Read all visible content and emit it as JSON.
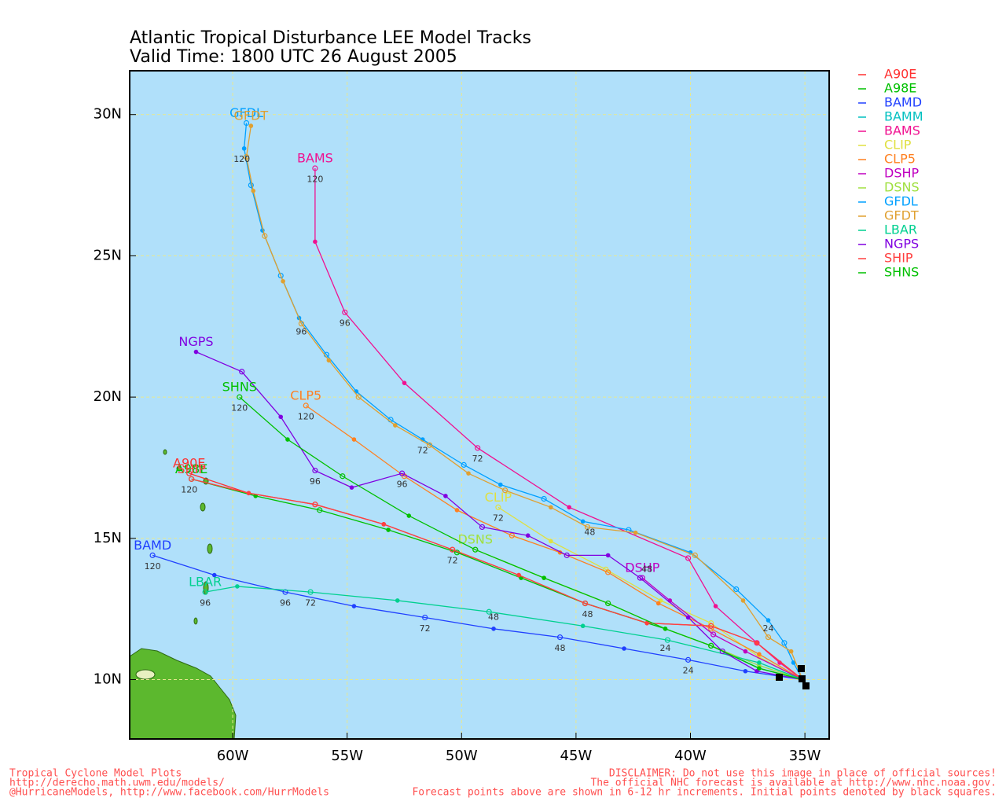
{
  "chart_data": {
    "type": "track",
    "title": "Atlantic Tropical Disturbance LEE Model Tracks",
    "subtitle": "Valid Time: 1800 UTC 26 August 2005",
    "xlim": [
      -64.5,
      -33.94
    ],
    "ylim": [
      7.9,
      31.55
    ],
    "xticks": [
      {
        "value": -60,
        "label": "60W"
      },
      {
        "value": -55,
        "label": "55W"
      },
      {
        "value": -50,
        "label": "50W"
      },
      {
        "value": -45,
        "label": "45W"
      },
      {
        "value": -40,
        "label": "40W"
      },
      {
        "value": -35,
        "label": "35W"
      }
    ],
    "yticks": [
      {
        "value": 10,
        "label": "10N"
      },
      {
        "value": 15,
        "label": "15N"
      },
      {
        "value": 20,
        "label": "20N"
      },
      {
        "value": 25,
        "label": "25N"
      },
      {
        "value": 30,
        "label": "30N"
      }
    ],
    "grid": true,
    "series": [
      {
        "name": "A90E",
        "color": "#ff3030",
        "x": [
          -35.1,
          -37.1,
          -39.1,
          -41.9,
          -44.6,
          -47.5,
          -50.4,
          -53.4,
          -56.4,
          -59.3,
          -61.9
        ],
        "y": [
          10.0,
          11.3,
          11.9,
          12.0,
          12.7,
          13.7,
          14.6,
          15.5,
          16.2,
          16.6,
          17.3
        ]
      },
      {
        "name": "A98E",
        "color": "#00c000",
        "x": [
          -35.1,
          -37.0,
          -39.1,
          -41.1,
          -44.6,
          -47.4,
          -50.2,
          -53.2,
          -56.2,
          -59.0,
          -61.8
        ],
        "y": [
          10.0,
          10.4,
          11.2,
          11.8,
          12.7,
          13.6,
          14.5,
          15.3,
          16.0,
          16.5,
          17.1
        ]
      },
      {
        "name": "BAMD",
        "color": "#2040ff",
        "x": [
          -35.1,
          -37.6,
          -40.1,
          -42.9,
          -45.7,
          -48.6,
          -51.6,
          -54.7,
          -57.7,
          -60.8,
          -63.5
        ],
        "y": [
          10.0,
          10.3,
          10.7,
          11.1,
          11.5,
          11.8,
          12.2,
          12.6,
          13.1,
          13.7,
          14.4
        ]
      },
      {
        "name": "BAMM",
        "color": "#00c0c0",
        "x": [],
        "y": []
      },
      {
        "name": "BAMS",
        "color": "#f01090",
        "x": [
          -35.1,
          -36.1,
          -37.1,
          -38.9,
          -40.1,
          -45.3,
          -49.3,
          -52.5,
          -55.1,
          -56.4,
          -56.4
        ],
        "y": [
          10.0,
          10.6,
          11.3,
          12.6,
          14.3,
          16.1,
          18.2,
          20.5,
          23.0,
          25.5,
          28.1
        ]
      },
      {
        "name": "CLIP",
        "color": "#e0e040",
        "x": [
          -35.1,
          -37.0,
          -39.1,
          -41.3,
          -43.7,
          -46.1,
          -48.4
        ],
        "y": [
          10.0,
          10.8,
          12.0,
          12.8,
          13.9,
          14.9,
          16.1
        ]
      },
      {
        "name": "CLP5",
        "color": "#ff8020",
        "x": [
          -35.1,
          -37.0,
          -39.1,
          -41.4,
          -43.6,
          -45.7,
          -47.8,
          -50.2,
          -52.5,
          -54.7,
          -56.8
        ],
        "y": [
          10.0,
          10.9,
          11.8,
          12.7,
          13.8,
          14.5,
          15.1,
          16.0,
          17.2,
          18.5,
          19.7
        ]
      },
      {
        "name": "DSHP",
        "color": "#c000c0",
        "x": [
          -35.1,
          -37.6,
          -39.0,
          -40.9,
          -42.1
        ],
        "y": [
          10.0,
          11.0,
          11.6,
          12.8,
          13.6
        ]
      },
      {
        "name": "DSNS",
        "color": "#a0e040",
        "x": [
          -35.1,
          -37.0,
          -39.1,
          -41.1,
          -43.6,
          -46.4,
          -49.4
        ],
        "y": [
          10.0,
          10.5,
          11.2,
          11.8,
          12.7,
          13.6,
          14.6
        ]
      },
      {
        "name": "GFDL",
        "color": "#00a0ff",
        "x": [
          -35.1,
          -35.5,
          -35.9,
          -36.6,
          -38.0,
          -40.0,
          -42.7,
          -44.7,
          -46.4,
          -48.3,
          -49.9,
          -51.7,
          -53.1,
          -54.6,
          -55.9,
          -57.1,
          -57.9,
          -58.7,
          -59.2,
          -59.5,
          -59.4
        ],
        "y": [
          10.0,
          10.6,
          11.3,
          12.1,
          13.2,
          14.5,
          15.3,
          15.6,
          16.4,
          16.9,
          17.6,
          18.5,
          19.2,
          20.2,
          21.5,
          22.8,
          24.3,
          25.9,
          27.5,
          28.8,
          29.7
        ]
      },
      {
        "name": "GFDT",
        "color": "#e0a030",
        "x": [
          -35.1,
          -35.6,
          -36.6,
          -37.7,
          -39.8,
          -42.4,
          -44.5,
          -46.1,
          -48.1,
          -49.7,
          -51.4,
          -52.9,
          -54.5,
          -55.8,
          -57.0,
          -57.8,
          -58.6,
          -59.1,
          -59.4,
          -59.2
        ],
        "y": [
          10.0,
          11.0,
          11.5,
          12.8,
          14.4,
          15.2,
          15.4,
          16.1,
          16.7,
          17.3,
          18.3,
          19.0,
          20.0,
          21.3,
          22.6,
          24.1,
          25.7,
          27.3,
          28.5,
          29.6
        ]
      },
      {
        "name": "LBAR",
        "color": "#00d090",
        "x": [
          -35.1,
          -37.0,
          -41.0,
          -44.7,
          -48.8,
          -52.8,
          -56.6,
          -59.8,
          -61.2
        ],
        "y": [
          10.0,
          10.6,
          11.4,
          11.9,
          12.4,
          12.8,
          13.1,
          13.3,
          13.1
        ]
      },
      {
        "name": "NGPS",
        "color": "#8000e0",
        "x": [
          -35.1,
          -37.1,
          -38.6,
          -40.1,
          -42.2,
          -43.6,
          -45.4,
          -47.1,
          -49.1,
          -50.7,
          -52.6,
          -54.8,
          -56.4,
          -57.9,
          -59.6,
          -61.6
        ],
        "y": [
          10.0,
          10.3,
          11.0,
          12.2,
          13.6,
          14.4,
          14.4,
          15.1,
          15.4,
          16.5,
          17.3,
          16.8,
          17.4,
          19.3,
          20.9,
          21.6
        ]
      },
      {
        "name": "SHIP",
        "color": "#ff4040",
        "x": [
          -35.1,
          -37.1,
          -39.1,
          -41.9,
          -44.6,
          -47.5,
          -50.4,
          -53.4,
          -56.4,
          -59.3,
          -61.8
        ],
        "y": [
          10.0,
          11.3,
          11.9,
          12.0,
          12.7,
          13.7,
          14.6,
          15.5,
          16.2,
          16.6,
          17.1
        ]
      },
      {
        "name": "SHNS",
        "color": "#00c000",
        "x": [
          -35.1,
          -37.0,
          -39.1,
          -41.1,
          -43.6,
          -46.4,
          -49.4,
          -52.3,
          -55.2,
          -57.6,
          -59.7
        ],
        "y": [
          10.0,
          10.4,
          11.2,
          11.8,
          12.7,
          13.6,
          14.6,
          15.8,
          17.2,
          18.5,
          20.0
        ]
      }
    ],
    "hour_labels": [
      {
        "text": "24",
        "x": -40.1,
        "y": 10.3
      },
      {
        "text": "24",
        "x": -41.1,
        "y": 11.1
      },
      {
        "text": "24",
        "x": -36.6,
        "y": 11.8
      },
      {
        "text": "48",
        "x": -45.7,
        "y": 11.1
      },
      {
        "text": "48",
        "x": -48.6,
        "y": 12.2
      },
      {
        "text": "48",
        "x": -44.5,
        "y": 12.3
      },
      {
        "text": "48",
        "x": -41.9,
        "y": 13.9
      },
      {
        "text": "48",
        "x": -44.4,
        "y": 15.2
      },
      {
        "text": "72",
        "x": -51.6,
        "y": 11.8
      },
      {
        "text": "72",
        "x": -50.4,
        "y": 14.2
      },
      {
        "text": "72",
        "x": -49.3,
        "y": 17.8
      },
      {
        "text": "72",
        "x": -51.7,
        "y": 18.1
      },
      {
        "text": "72",
        "x": -48.4,
        "y": 15.7
      },
      {
        "text": "72",
        "x": -56.6,
        "y": 12.7
      },
      {
        "text": "96",
        "x": -57.7,
        "y": 12.7
      },
      {
        "text": "96",
        "x": -55.1,
        "y": 22.6
      },
      {
        "text": "96",
        "x": -57.0,
        "y": 22.3
      },
      {
        "text": "96",
        "x": -56.4,
        "y": 17.0
      },
      {
        "text": "96",
        "x": -52.6,
        "y": 16.9
      },
      {
        "text": "96",
        "x": -61.2,
        "y": 12.7
      },
      {
        "text": "120",
        "x": -63.5,
        "y": 14.0
      },
      {
        "text": "120",
        "x": -56.4,
        "y": 27.7
      },
      {
        "text": "120",
        "x": -59.6,
        "y": 28.4
      },
      {
        "text": "120",
        "x": -56.8,
        "y": 19.3
      },
      {
        "text": "120",
        "x": -59.7,
        "y": 19.6
      },
      {
        "text": "120",
        "x": -61.9,
        "y": 16.7
      }
    ],
    "footer_left": [
      "Tropical Cyclone Model Plots",
      "http://derecho.math.uwm.edu/models/",
      "@HurricaneModels, http://www.facebook.com/HurrModels"
    ],
    "footer_right": [
      "DISCLAIMER: Do not use this image in place of official sources!",
      "The official NHC forecast is available at http://www.nhc.noaa.gov.",
      "Forecast points above are shown in 6-12 hr increments. Initial points denoted by black squares."
    ]
  }
}
